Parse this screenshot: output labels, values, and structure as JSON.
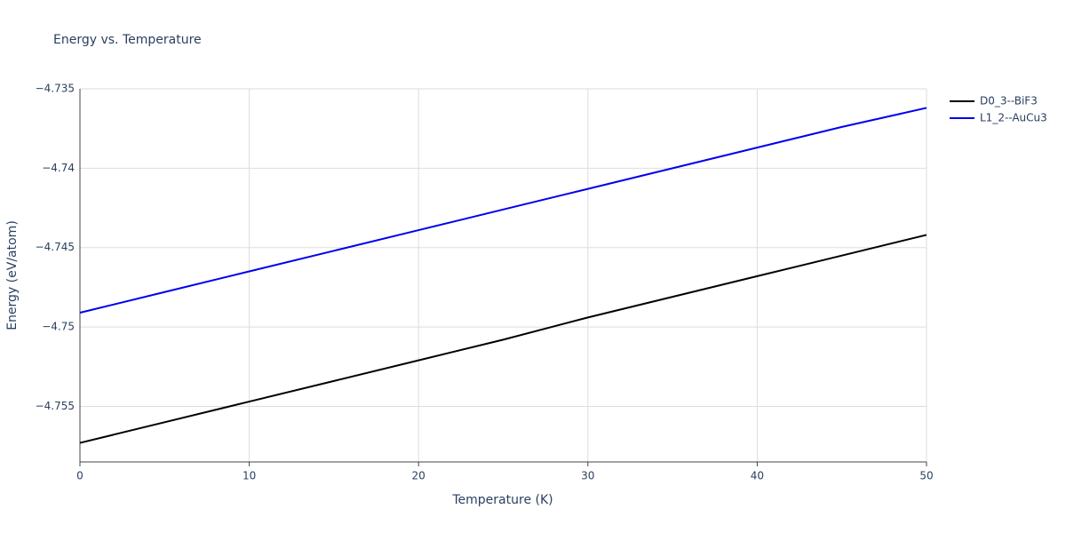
{
  "chart_data": {
    "type": "line",
    "title": "Energy vs. Temperature",
    "x_label": "Temperature (K)",
    "y_label": "Energy (eV/atom)",
    "x": [
      0,
      5,
      10,
      15,
      20,
      25,
      30,
      35,
      40,
      45,
      50
    ],
    "series": [
      {
        "name": "D0_3--BiF3",
        "color": "#000000",
        "values": [
          -4.7573,
          -4.756,
          -4.7547,
          -4.7534,
          -4.7521,
          -4.7508,
          -4.7494,
          -4.7481,
          -4.7468,
          -4.7455,
          -4.7442
        ]
      },
      {
        "name": "L1_2--AuCu3",
        "color": "#0000ee",
        "values": [
          -4.7491,
          -4.7478,
          -4.7465,
          -4.7452,
          -4.7439,
          -4.7426,
          -4.7413,
          -4.74,
          -4.7387,
          -4.7374,
          -4.7362
        ]
      }
    ],
    "xlim": [
      0,
      50
    ],
    "xticks": [
      0,
      10,
      20,
      30,
      40,
      50
    ],
    "ylim": [
      -4.7585,
      -4.735
    ],
    "yticks": [
      {
        "value": -4.755,
        "label": "−4.755"
      },
      {
        "value": -4.75,
        "label": "−4.75"
      },
      {
        "value": -4.745,
        "label": "−4.745"
      },
      {
        "value": -4.74,
        "label": "−4.74"
      },
      {
        "value": -4.735,
        "label": "−4.735"
      }
    ],
    "grid": true,
    "legend": "right"
  }
}
